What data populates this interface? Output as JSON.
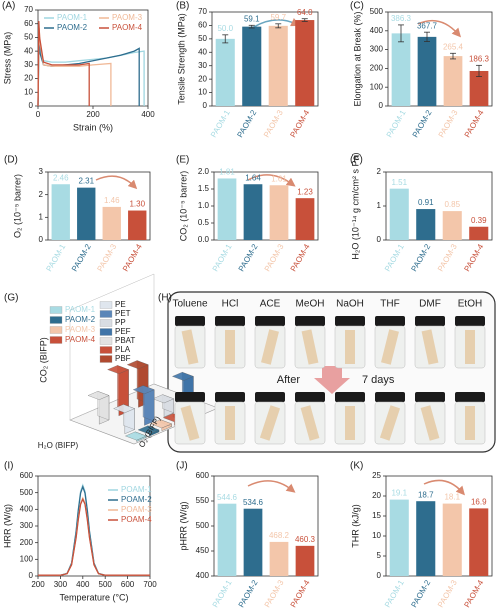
{
  "chart_data": [
    {
      "type": "line",
      "label": "(A)",
      "x_label": "Strain (%)",
      "y_label": "Stress (MPa)",
      "xlim": [
        0,
        400
      ],
      "xticks": [
        0,
        200,
        400
      ],
      "ylim": [
        0,
        70
      ],
      "yticks": [
        0,
        10,
        20,
        30,
        40,
        50,
        60,
        70
      ],
      "legend": "top",
      "series": [
        {
          "name": "PAOM-1",
          "color": "#9fd6e0",
          "x": [
            0,
            4,
            8,
            20,
            50,
            100,
            150,
            200,
            250,
            300,
            350,
            386,
            386
          ],
          "values": [
            0,
            48,
            40,
            33,
            32,
            32,
            33,
            34,
            35,
            37,
            39,
            40,
            0
          ]
        },
        {
          "name": "PAOM-2",
          "color": "#2e6d8e",
          "x": [
            0,
            4,
            8,
            20,
            50,
            100,
            150,
            200,
            250,
            300,
            350,
            368,
            368
          ],
          "values": [
            0,
            55,
            38,
            30,
            29,
            30,
            31,
            33,
            35,
            37,
            40,
            42,
            0
          ]
        },
        {
          "name": "PAOM-3",
          "color": "#f0b896",
          "x": [
            0,
            4,
            8,
            20,
            50,
            100,
            150,
            200,
            265,
            265
          ],
          "values": [
            0,
            57,
            45,
            30,
            29,
            29,
            29,
            30,
            31,
            0
          ]
        },
        {
          "name": "PAOM-4",
          "color": "#c8503a",
          "x": [
            0,
            3,
            6,
            20,
            50,
            100,
            150,
            186,
            186
          ],
          "values": [
            0,
            62,
            50,
            32,
            30,
            30,
            30,
            31,
            0
          ]
        }
      ]
    },
    {
      "type": "bar",
      "label": "(B)",
      "y_label": "Tensile Strength (MPa)",
      "ylim": [
        0,
        70
      ],
      "yticks": [
        0,
        10,
        20,
        30,
        40,
        50,
        60,
        70
      ],
      "categories": [
        "PAOM-1",
        "PAOM-2",
        "PAOM-3",
        "PAOM-4"
      ],
      "colors": [
        "#a8dbe3",
        "#2e6d8e",
        "#f3c6aa",
        "#c8503a"
      ],
      "values": [
        50.0,
        59.1,
        59.7,
        64.0
      ],
      "value_labels": [
        "50.0",
        "59.1",
        "59.7",
        "64.0"
      ],
      "errors": [
        3,
        1,
        1.5,
        1
      ]
    },
    {
      "type": "bar",
      "label": "(C)",
      "y_label": "Elongation at Break (%)",
      "ylim": [
        0,
        500
      ],
      "yticks": [
        0,
        100,
        200,
        300,
        400,
        500
      ],
      "categories": [
        "PAOM-1",
        "PAOM-2",
        "PAOM-3",
        "PAOM-4"
      ],
      "colors": [
        "#a8dbe3",
        "#2e6d8e",
        "#f3c6aa",
        "#c8503a"
      ],
      "values": [
        386.3,
        367.7,
        265.4,
        186.3
      ],
      "errors": [
        45,
        25,
        15,
        30
      ]
    },
    {
      "type": "bar",
      "label": "(D)",
      "y_label": "O₂ (10⁻⁵ barrer)",
      "ylim": [
        0,
        3
      ],
      "yticks": [
        0,
        1,
        2,
        3
      ],
      "categories": [
        "PAOM-1",
        "PAOM-2",
        "PAOM-3",
        "PAOM-4"
      ],
      "colors": [
        "#a8dbe3",
        "#2e6d8e",
        "#f3c6aa",
        "#c8503a"
      ],
      "values": [
        2.46,
        2.31,
        1.46,
        1.3
      ],
      "value_labels": [
        "2.46",
        "2.31",
        "1.46",
        "1.30"
      ]
    },
    {
      "type": "bar",
      "label": "(E)",
      "y_label": "CO₂ (10⁻⁵ barrer)",
      "ylim": [
        0,
        2
      ],
      "yticks": [
        {
          "value": 0,
          "label": "0.0"
        },
        {
          "value": 0.5,
          "label": "0.5"
        },
        {
          "value": 1,
          "label": "1.0"
        },
        {
          "value": 1.5,
          "label": "1.5"
        },
        {
          "value": 2,
          "label": "2.0"
        }
      ],
      "categories": [
        "PAOM-1",
        "PAOM-2",
        "PAOM-3",
        "PAOM-4"
      ],
      "colors": [
        "#a8dbe3",
        "#2e6d8e",
        "#f3c6aa",
        "#c8503a"
      ],
      "values": [
        1.81,
        1.64,
        1.61,
        1.23
      ]
    },
    {
      "type": "bar",
      "label": "(F)",
      "y_label": "H₂O (10⁻¹⁴ g cm/cm² s Pa)",
      "ylim": [
        0,
        2
      ],
      "yticks": [
        0,
        1,
        2
      ],
      "categories": [
        "PAOM-1",
        "PAOM-2",
        "PAOM-3",
        "PAOM-4"
      ],
      "colors": [
        "#a8dbe3",
        "#2e6d8e",
        "#f3c6aa",
        "#c8503a"
      ],
      "values": [
        1.51,
        0.91,
        0.85,
        0.39
      ]
    },
    {
      "type": "bar3d",
      "label": "(G)",
      "z_label": "CO₂ (BIFP)",
      "x_label": "H₂O (BIFP)",
      "y_label": "O₂ (BIFP)",
      "zlim": [
        0,
        100
      ],
      "categories": [
        "PAOM-1",
        "PAOM-2",
        "PAOM-3",
        "PAOM-4",
        "PE",
        "PET",
        "PP",
        "PEF",
        "PBAT",
        "PLA",
        "PBF"
      ],
      "colors": [
        "#a8dbe3",
        "#2e6d8e",
        "#f3c6aa",
        "#c8503a",
        "#dfe6ee",
        "#5b86b8",
        "#d9dde3",
        "#3f74a8",
        "#e2e2e2",
        "#c8503a",
        "#b04a30"
      ],
      "values": [
        2,
        3,
        4,
        5,
        30,
        45,
        20,
        40,
        35,
        60,
        55
      ]
    },
    {
      "type": "line",
      "label": "(I)",
      "x_label": "Temperature (°C)",
      "y_label": "HRR (W/g)",
      "xlim": [
        200,
        700
      ],
      "xticks": [
        200,
        300,
        400,
        500,
        600,
        700
      ],
      "ylim": [
        0,
        600
      ],
      "yticks": [
        0,
        100,
        200,
        300,
        400,
        500,
        600
      ],
      "legend": "right",
      "x": [
        200,
        250,
        300,
        330,
        350,
        370,
        380,
        390,
        400,
        410,
        420,
        430,
        450,
        470,
        500,
        550,
        600,
        700
      ],
      "series": [
        {
          "name": "POAM-1",
          "color": "#9fd6e0",
          "values": [
            5,
            5,
            5,
            16,
            78,
            270,
            400,
            508,
            545,
            508,
            400,
            270,
            78,
            16,
            5,
            5,
            5,
            5
          ]
        },
        {
          "name": "POAM-2",
          "color": "#2e6d8e",
          "values": [
            5,
            5,
            5,
            15,
            77,
            265,
            393,
            498,
            535,
            498,
            393,
            265,
            77,
            15,
            5,
            5,
            5,
            5
          ]
        },
        {
          "name": "POAM-3",
          "color": "#f0b896",
          "values": [
            5,
            5,
            5,
            14,
            68,
            233,
            345,
            437,
            468,
            437,
            345,
            233,
            68,
            14,
            5,
            5,
            5,
            5
          ]
        },
        {
          "name": "POAM-4",
          "color": "#c8503a",
          "values": [
            5,
            5,
            5,
            14,
            67,
            229,
            339,
            430,
            460,
            430,
            339,
            229,
            67,
            14,
            5,
            5,
            5,
            5
          ]
        }
      ]
    },
    {
      "type": "bar",
      "label": "(J)",
      "y_label": "pHRR (W/g)",
      "ylim": [
        400,
        600
      ],
      "yticks": [
        400,
        450,
        500,
        550,
        600
      ],
      "categories": [
        "PAOM-1",
        "PAOM-2",
        "PAOM-3",
        "PAOM-4"
      ],
      "colors": [
        "#a8dbe3",
        "#2e6d8e",
        "#f3c6aa",
        "#c8503a"
      ],
      "values": [
        544.6,
        534.6,
        468.2,
        460.3
      ]
    },
    {
      "type": "bar",
      "label": "(K)",
      "y_label": "THR (kJ/g)",
      "ylim": [
        0,
        25
      ],
      "yticks": [
        0,
        5,
        10,
        15,
        20,
        25
      ],
      "categories": [
        "PAOM-1",
        "PAOM-2",
        "PAOM-3",
        "PAOM-4"
      ],
      "colors": [
        "#a8dbe3",
        "#2e6d8e",
        "#f3c6aa",
        "#c8503a"
      ],
      "values": [
        19.1,
        18.7,
        18.1,
        16.9
      ]
    }
  ],
  "photo": {
    "label": "(H)",
    "solvents": [
      "Toluene",
      "HCl",
      "ACE",
      "MeOH",
      "NaOH",
      "THF",
      "DMF",
      "EtOH"
    ],
    "before_arrow": "After",
    "after_arrow": "7 days"
  }
}
